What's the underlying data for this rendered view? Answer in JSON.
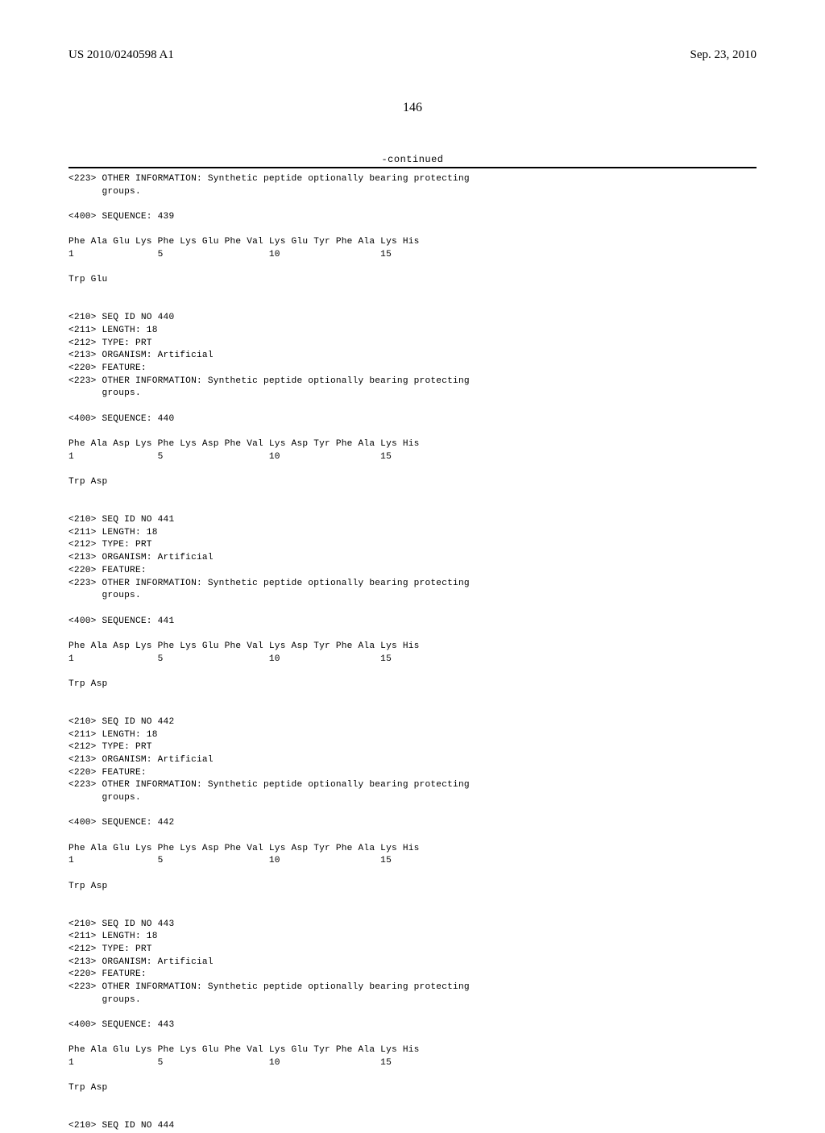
{
  "header": {
    "publication_number": "US 2010/0240598 A1",
    "publication_date": "Sep. 23, 2010"
  },
  "page_number": "146",
  "continued_label": "-continued",
  "sequences": [
    {
      "intro": "<223> OTHER INFORMATION: Synthetic peptide optionally bearing protecting\n      groups.",
      "seq_header": "<400> SEQUENCE: 439",
      "residues_line": "Phe Ala Glu Lys Phe Lys Glu Phe Val Lys Glu Tyr Phe Ala Lys His",
      "number_line": "1               5                   10                  15",
      "tail": "Trp Glu"
    },
    {
      "block_header": "<210> SEQ ID NO 440\n<211> LENGTH: 18\n<212> TYPE: PRT\n<213> ORGANISM: Artificial\n<220> FEATURE:\n<223> OTHER INFORMATION: Synthetic peptide optionally bearing protecting\n      groups.",
      "seq_header": "<400> SEQUENCE: 440",
      "residues_line": "Phe Ala Asp Lys Phe Lys Asp Phe Val Lys Asp Tyr Phe Ala Lys His",
      "number_line": "1               5                   10                  15",
      "tail": "Trp Asp"
    },
    {
      "block_header": "<210> SEQ ID NO 441\n<211> LENGTH: 18\n<212> TYPE: PRT\n<213> ORGANISM: Artificial\n<220> FEATURE:\n<223> OTHER INFORMATION: Synthetic peptide optionally bearing protecting\n      groups.",
      "seq_header": "<400> SEQUENCE: 441",
      "residues_line": "Phe Ala Asp Lys Phe Lys Glu Phe Val Lys Asp Tyr Phe Ala Lys His",
      "number_line": "1               5                   10                  15",
      "tail": "Trp Asp"
    },
    {
      "block_header": "<210> SEQ ID NO 442\n<211> LENGTH: 18\n<212> TYPE: PRT\n<213> ORGANISM: Artificial\n<220> FEATURE:\n<223> OTHER INFORMATION: Synthetic peptide optionally bearing protecting\n      groups.",
      "seq_header": "<400> SEQUENCE: 442",
      "residues_line": "Phe Ala Glu Lys Phe Lys Asp Phe Val Lys Asp Tyr Phe Ala Lys His",
      "number_line": "1               5                   10                  15",
      "tail": "Trp Asp"
    },
    {
      "block_header": "<210> SEQ ID NO 443\n<211> LENGTH: 18\n<212> TYPE: PRT\n<213> ORGANISM: Artificial\n<220> FEATURE:\n<223> OTHER INFORMATION: Synthetic peptide optionally bearing protecting\n      groups.",
      "seq_header": "<400> SEQUENCE: 443",
      "residues_line": "Phe Ala Glu Lys Phe Lys Glu Phe Val Lys Glu Tyr Phe Ala Lys His",
      "number_line": "1               5                   10                  15",
      "tail": "Trp Asp"
    },
    {
      "footer": "<210> SEQ ID NO 444"
    }
  ]
}
